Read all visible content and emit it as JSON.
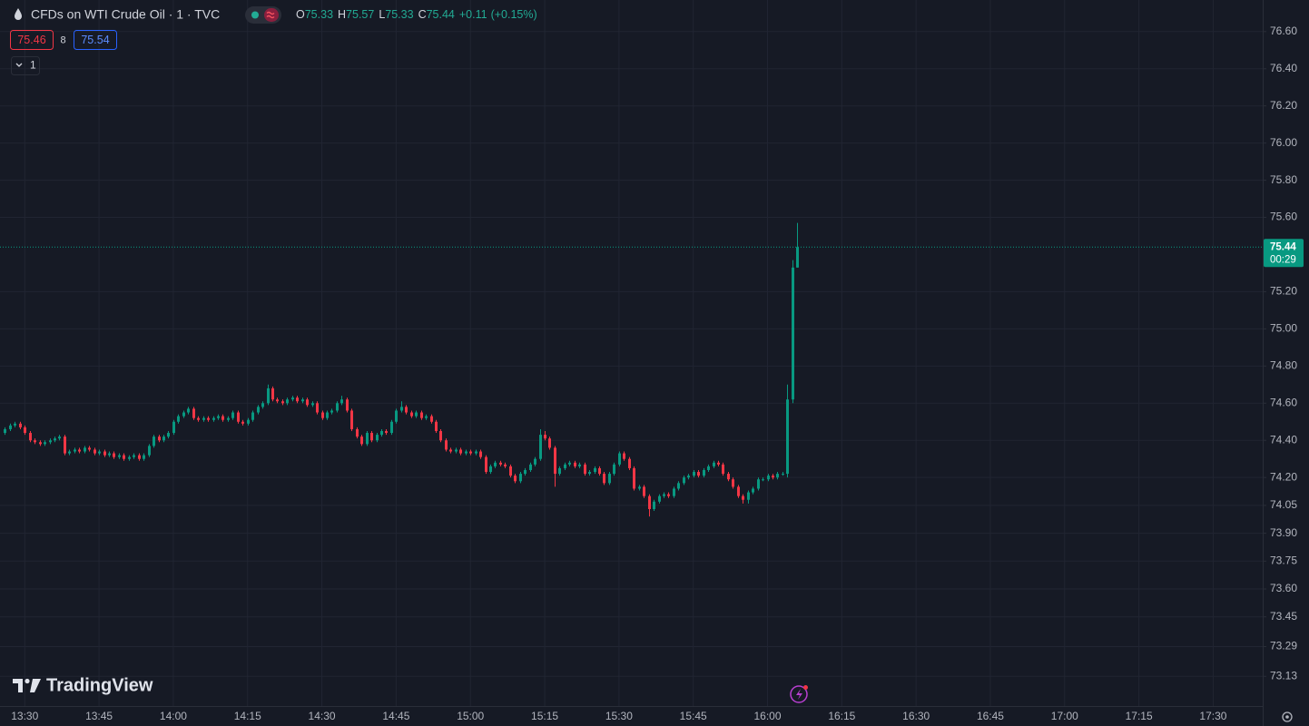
{
  "chart_data": {
    "type": "candlestick",
    "title": "CFDs on WTI Crude Oil · 1 · TVC",
    "ohlc_labels": [
      "O",
      "H",
      "L",
      "C"
    ],
    "legend": {
      "open": 75.33,
      "high": 75.57,
      "low": 75.33,
      "close": 75.44,
      "change": {
        "value": 0.11,
        "label": "+0.11"
      },
      "change_percent": {
        "value": 0.15,
        "label": "(+0.15%)"
      }
    },
    "bid": 75.46,
    "spread": 8,
    "ask": 75.54,
    "interval": "1",
    "last_price": 75.44,
    "countdown": "00:29",
    "brand": "TradingView",
    "up_color": "#089981",
    "down_color": "#f23645",
    "grid": true,
    "xlim": [
      "13:25",
      "17:40"
    ],
    "xticks": [
      "13:30",
      "13:45",
      "14:00",
      "14:15",
      "14:30",
      "14:45",
      "15:00",
      "15:15",
      "15:30",
      "15:45",
      "16:00",
      "16:15",
      "16:30",
      "16:45",
      "17:00",
      "17:15",
      "17:30"
    ],
    "ylim": [
      72.97,
      76.77
    ],
    "yticks": [
      {
        "value": 76.6,
        "label": "76.60"
      },
      {
        "value": 76.4,
        "label": "76.40"
      },
      {
        "value": 76.2,
        "label": "76.20"
      },
      {
        "value": 76,
        "label": "76.00"
      },
      {
        "value": 75.8,
        "label": "75.80"
      },
      {
        "value": 75.6,
        "label": "75.60"
      },
      {
        "value": 75.2,
        "label": "75.20"
      },
      {
        "value": 75,
        "label": "75.00"
      },
      {
        "value": 74.8,
        "label": "74.80"
      },
      {
        "value": 74.6,
        "label": "74.60"
      },
      {
        "value": 74.4,
        "label": "74.40"
      },
      {
        "value": 74.2,
        "label": "74.20"
      },
      74.05,
      {
        "value": 73.9,
        "label": "73.90"
      },
      73.75,
      {
        "value": 73.6,
        "label": "73.60"
      },
      73.45,
      73.29,
      73.13
    ],
    "x": [
      "13:26",
      "13:27",
      "13:28",
      "13:29",
      "13:30",
      "13:31",
      "13:32",
      "13:33",
      "13:34",
      "13:35",
      "13:36",
      "13:37",
      "13:38",
      "13:39",
      "13:40",
      "13:41",
      "13:42",
      "13:43",
      "13:44",
      "13:45",
      "13:46",
      "13:47",
      "13:48",
      "13:49",
      "13:50",
      "13:51",
      "13:52",
      "13:53",
      "13:54",
      "13:55",
      "13:56",
      "13:57",
      "13:58",
      "13:59",
      "14:00",
      "14:01",
      "14:02",
      "14:03",
      "14:04",
      "14:05",
      "14:06",
      "14:07",
      "14:08",
      "14:09",
      "14:10",
      "14:11",
      "14:12",
      "14:13",
      "14:14",
      "14:15",
      "14:16",
      "14:17",
      "14:18",
      "14:19",
      "14:20",
      "14:21",
      "14:22",
      "14:23",
      "14:24",
      "14:25",
      "14:26",
      "14:27",
      "14:28",
      "14:29",
      "14:30",
      "14:31",
      "14:32",
      "14:33",
      "14:34",
      "14:35",
      "14:36",
      "14:37",
      "14:38",
      "14:39",
      "14:40",
      "14:41",
      "14:42",
      "14:43",
      "14:44",
      "14:45",
      "14:46",
      "14:47",
      "14:48",
      "14:49",
      "14:50",
      "14:51",
      "14:52",
      "14:53",
      "14:54",
      "14:55",
      "14:56",
      "14:57",
      "14:58",
      "14:59",
      "15:00",
      "15:01",
      "15:02",
      "15:03",
      "15:04",
      "15:05",
      "15:06",
      "15:07",
      "15:08",
      "15:09",
      "15:10",
      "15:11",
      "15:12",
      "15:13",
      "15:14",
      "15:15",
      "15:16",
      "15:17",
      "15:18",
      "15:19",
      "15:20",
      "15:21",
      "15:22",
      "15:23",
      "15:24",
      "15:25",
      "15:26",
      "15:27",
      "15:28",
      "15:29",
      "15:30",
      "15:31",
      "15:32",
      "15:33",
      "15:34",
      "15:35",
      "15:36",
      "15:37",
      "15:38",
      "15:39",
      "15:40",
      "15:41",
      "15:42",
      "15:43",
      "15:44",
      "15:45",
      "15:46",
      "15:47",
      "15:48",
      "15:49",
      "15:50",
      "15:51",
      "15:52",
      "15:53",
      "15:54",
      "15:55",
      "15:56",
      "15:57",
      "15:58",
      "15:59",
      "16:00",
      "16:01",
      "16:02",
      "16:03",
      "16:04",
      "16:05",
      "16:06"
    ],
    "open": [
      74.44,
      74.46,
      74.48,
      74.49,
      74.47,
      74.44,
      74.4,
      74.39,
      74.38,
      74.39,
      74.4,
      74.41,
      74.42,
      74.33,
      74.34,
      74.35,
      74.34,
      74.36,
      74.35,
      74.33,
      74.34,
      74.32,
      74.33,
      74.31,
      74.32,
      74.3,
      74.31,
      74.32,
      74.3,
      74.32,
      74.37,
      74.42,
      74.4,
      74.42,
      74.44,
      74.5,
      74.53,
      74.55,
      74.57,
      74.52,
      74.51,
      74.52,
      74.51,
      74.52,
      74.53,
      74.51,
      74.52,
      74.55,
      74.5,
      74.49,
      74.51,
      74.55,
      74.58,
      74.6,
      74.68,
      74.62,
      74.61,
      74.6,
      74.62,
      74.63,
      74.61,
      74.62,
      74.59,
      74.6,
      74.55,
      74.52,
      74.55,
      74.56,
      74.6,
      74.62,
      74.56,
      74.46,
      74.42,
      74.38,
      74.44,
      74.4,
      74.43,
      74.45,
      74.44,
      74.5,
      74.56,
      74.58,
      74.55,
      74.53,
      74.55,
      74.52,
      74.53,
      74.5,
      74.45,
      74.4,
      74.35,
      74.34,
      74.35,
      74.33,
      74.34,
      74.33,
      74.34,
      74.31,
      74.23,
      74.26,
      74.28,
      74.27,
      74.26,
      74.21,
      74.18,
      74.22,
      74.24,
      74.27,
      74.3,
      74.43,
      74.41,
      74.36,
      74.22,
      74.25,
      74.27,
      74.28,
      74.26,
      74.27,
      74.22,
      74.23,
      74.25,
      74.22,
      74.17,
      74.22,
      74.27,
      74.33,
      74.3,
      74.25,
      74.14,
      74.15,
      74.1,
      74.03,
      74.07,
      74.1,
      74.11,
      74.1,
      74.14,
      74.17,
      74.2,
      74.21,
      74.23,
      74.21,
      74.24,
      74.26,
      74.28,
      74.27,
      74.22,
      74.19,
      74.15,
      74.1,
      74.08,
      74.12,
      74.14,
      74.19,
      74.19,
      74.21,
      74.2,
      74.22,
      74.22,
      74.62,
      75.33
    ],
    "high": [
      74.47,
      74.49,
      74.5,
      74.5,
      74.48,
      74.45,
      74.41,
      74.4,
      74.4,
      74.41,
      74.42,
      74.43,
      74.43,
      74.35,
      74.36,
      74.36,
      74.37,
      74.37,
      74.36,
      74.35,
      74.35,
      74.34,
      74.34,
      74.33,
      74.33,
      74.32,
      74.33,
      74.33,
      74.33,
      74.38,
      74.43,
      74.43,
      74.43,
      74.45,
      74.51,
      74.54,
      74.56,
      74.58,
      74.58,
      74.53,
      74.53,
      74.53,
      74.53,
      74.54,
      74.54,
      74.53,
      74.56,
      74.56,
      74.51,
      74.52,
      74.56,
      74.59,
      74.61,
      74.7,
      74.69,
      74.63,
      74.62,
      74.63,
      74.64,
      74.64,
      74.63,
      74.63,
      74.61,
      74.61,
      74.56,
      74.56,
      74.57,
      74.61,
      74.64,
      74.63,
      74.57,
      74.47,
      74.43,
      74.45,
      74.45,
      74.44,
      74.46,
      74.46,
      74.51,
      74.57,
      74.61,
      74.59,
      74.56,
      74.56,
      74.56,
      74.54,
      74.54,
      74.51,
      74.46,
      74.41,
      74.36,
      74.36,
      74.36,
      74.35,
      74.35,
      74.35,
      74.35,
      74.32,
      74.27,
      74.29,
      74.29,
      74.28,
      74.27,
      74.22,
      74.23,
      74.25,
      74.28,
      74.31,
      74.46,
      74.45,
      74.42,
      74.37,
      74.26,
      74.28,
      74.29,
      74.29,
      74.28,
      74.28,
      74.24,
      74.26,
      74.26,
      74.23,
      74.23,
      74.28,
      74.34,
      74.34,
      74.31,
      74.26,
      74.16,
      74.16,
      74.11,
      74.08,
      74.11,
      74.12,
      74.12,
      74.15,
      74.18,
      74.21,
      74.22,
      74.24,
      74.24,
      74.25,
      74.27,
      74.29,
      74.29,
      74.28,
      74.23,
      74.2,
      74.16,
      74.11,
      74.13,
      74.15,
      74.2,
      74.2,
      74.22,
      74.22,
      74.23,
      74.23,
      74.7,
      75.37,
      75.57
    ],
    "low": [
      74.43,
      74.45,
      74.47,
      74.46,
      74.43,
      74.39,
      74.38,
      74.37,
      74.37,
      74.38,
      74.39,
      74.4,
      74.32,
      74.32,
      74.33,
      74.33,
      74.33,
      74.34,
      74.32,
      74.32,
      74.31,
      74.31,
      74.3,
      74.3,
      74.29,
      74.29,
      74.3,
      74.29,
      74.29,
      74.31,
      74.36,
      74.39,
      74.39,
      74.41,
      74.43,
      74.49,
      74.52,
      74.54,
      74.51,
      74.5,
      74.5,
      74.5,
      74.5,
      74.51,
      74.5,
      74.5,
      74.51,
      74.49,
      74.48,
      74.48,
      74.5,
      74.54,
      74.57,
      74.59,
      74.61,
      74.6,
      74.59,
      74.59,
      74.61,
      74.6,
      74.6,
      74.58,
      74.58,
      74.54,
      74.51,
      74.51,
      74.54,
      74.55,
      74.59,
      74.55,
      74.45,
      74.41,
      74.37,
      74.37,
      74.39,
      74.39,
      74.42,
      74.43,
      74.43,
      74.49,
      74.55,
      74.54,
      74.52,
      74.52,
      74.51,
      74.51,
      74.49,
      74.44,
      74.39,
      74.34,
      74.33,
      74.33,
      74.32,
      74.32,
      74.32,
      74.32,
      74.3,
      74.22,
      74.22,
      74.25,
      74.26,
      74.25,
      74.2,
      74.17,
      74.17,
      74.21,
      74.23,
      74.26,
      74.29,
      74.4,
      74.35,
      74.15,
      74.21,
      74.24,
      74.26,
      74.25,
      74.25,
      74.21,
      74.21,
      74.22,
      74.21,
      74.16,
      74.16,
      74.21,
      74.26,
      74.29,
      74.24,
      74.13,
      74.13,
      74.09,
      73.99,
      74.02,
      74.06,
      74.09,
      74.09,
      74.09,
      74.13,
      74.16,
      74.19,
      74.2,
      74.2,
      74.2,
      74.23,
      74.25,
      74.26,
      74.21,
      74.18,
      74.14,
      74.09,
      74.06,
      74.06,
      74.11,
      74.13,
      74.18,
      74.18,
      74.19,
      74.19,
      74.21,
      74.2,
      74.6,
      75.33
    ],
    "close": [
      74.46,
      74.48,
      74.49,
      74.47,
      74.44,
      74.4,
      74.39,
      74.38,
      74.39,
      74.4,
      74.41,
      74.42,
      74.33,
      74.34,
      74.35,
      74.34,
      74.36,
      74.35,
      74.33,
      74.34,
      74.32,
      74.33,
      74.31,
      74.32,
      74.3,
      74.31,
      74.32,
      74.3,
      74.32,
      74.37,
      74.42,
      74.4,
      74.42,
      74.44,
      74.5,
      74.53,
      74.55,
      74.57,
      74.52,
      74.51,
      74.52,
      74.51,
      74.52,
      74.53,
      74.51,
      74.52,
      74.55,
      74.5,
      74.49,
      74.51,
      74.55,
      74.58,
      74.6,
      74.68,
      74.62,
      74.61,
      74.6,
      74.62,
      74.63,
      74.61,
      74.62,
      74.59,
      74.6,
      74.55,
      74.52,
      74.55,
      74.56,
      74.6,
      74.62,
      74.56,
      74.46,
      74.42,
      74.38,
      74.44,
      74.4,
      74.43,
      74.45,
      74.44,
      74.5,
      74.56,
      74.58,
      74.55,
      74.53,
      74.55,
      74.52,
      74.53,
      74.5,
      74.45,
      74.4,
      74.35,
      74.34,
      74.35,
      74.33,
      74.34,
      74.33,
      74.34,
      74.31,
      74.23,
      74.26,
      74.28,
      74.27,
      74.26,
      74.21,
      74.18,
      74.22,
      74.24,
      74.27,
      74.3,
      74.43,
      74.41,
      74.36,
      74.22,
      74.25,
      74.27,
      74.28,
      74.26,
      74.27,
      74.22,
      74.23,
      74.25,
      74.22,
      74.17,
      74.22,
      74.27,
      74.33,
      74.3,
      74.25,
      74.14,
      74.15,
      74.1,
      74.03,
      74.07,
      74.1,
      74.11,
      74.1,
      74.14,
      74.17,
      74.2,
      74.21,
      74.23,
      74.21,
      74.24,
      74.26,
      74.28,
      74.27,
      74.22,
      74.19,
      74.15,
      74.1,
      74.08,
      74.12,
      74.14,
      74.19,
      74.19,
      74.21,
      74.2,
      74.22,
      74.22,
      74.62,
      75.33,
      75.44
    ]
  }
}
